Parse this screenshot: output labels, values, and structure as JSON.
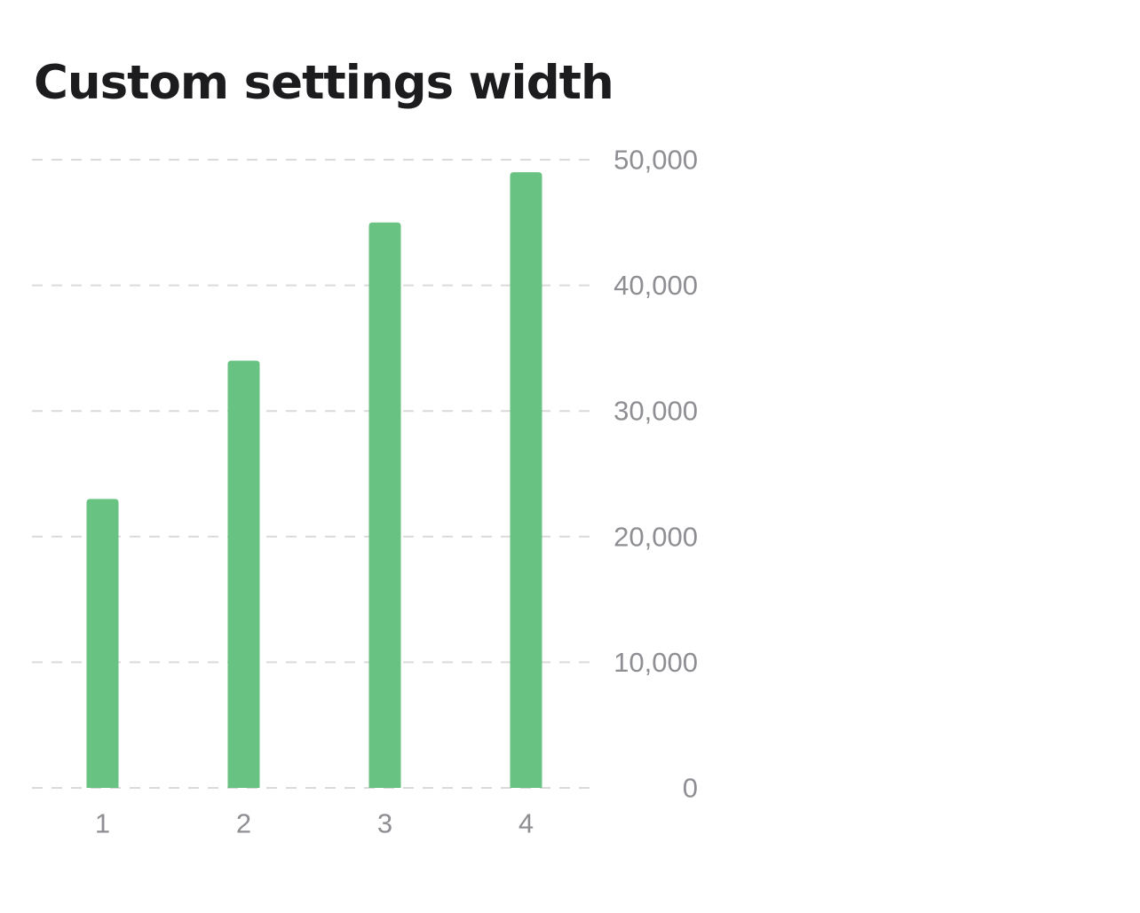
{
  "chart_data": {
    "type": "bar",
    "title": "Custom settings width",
    "xlabel": "",
    "ylabel": "",
    "categories": [
      "1",
      "2",
      "3",
      "4"
    ],
    "values": [
      23000,
      34000,
      45000,
      49000
    ],
    "ylim": [
      0,
      50000
    ],
    "y_ticks": [
      0,
      10000,
      20000,
      30000,
      40000,
      50000
    ],
    "y_tick_labels": [
      "0",
      "10,000",
      "20,000",
      "30,000",
      "40,000",
      "50,000"
    ],
    "y_axis_side": "right",
    "grid": true,
    "grid_style": "dashed",
    "legend": "none",
    "bar_color": "#68c281",
    "grid_color": "#dadada",
    "tick_color": "#8e8e93"
  }
}
